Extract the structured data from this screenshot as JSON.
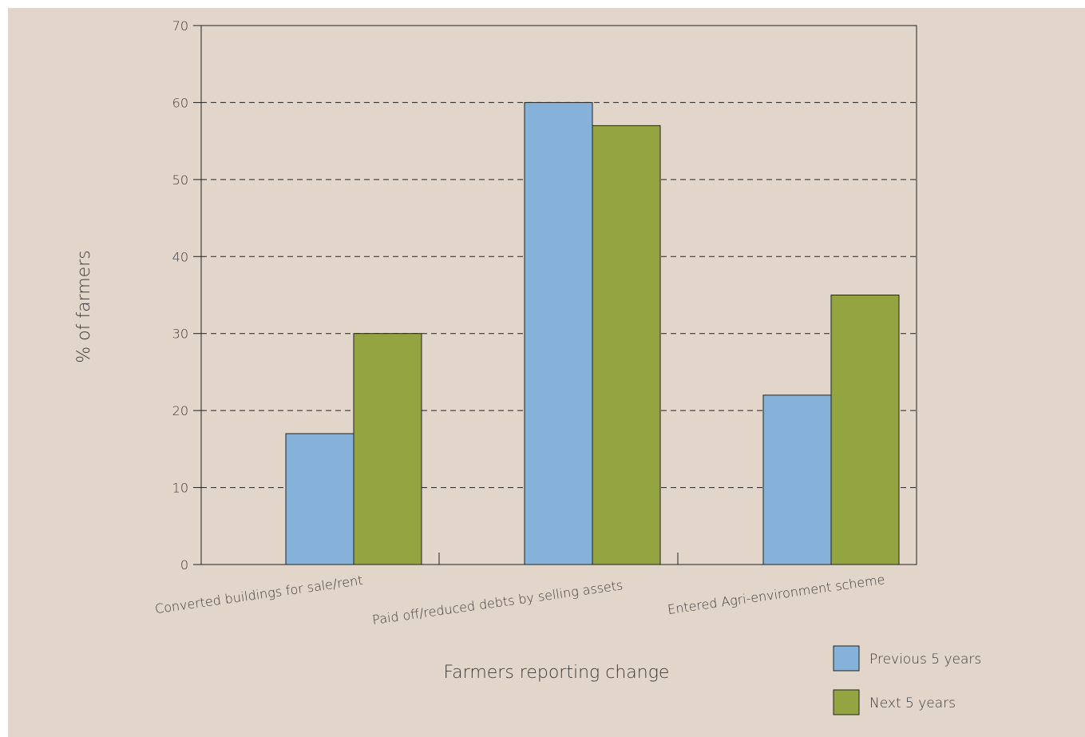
{
  "chart_data": {
    "type": "bar",
    "title": "",
    "xlabel": "Farmers reporting change",
    "ylabel": "% of farmers",
    "ylim": [
      0,
      70
    ],
    "yticks": [
      0,
      10,
      20,
      30,
      40,
      50,
      60,
      70
    ],
    "grid": true,
    "legend_position": "bottom-right",
    "categories": [
      "Converted buildings for sale/rent",
      "Paid off/reduced debts by selling assets",
      "Entered Agri-environment scheme"
    ],
    "series": [
      {
        "name": "Previous 5 years",
        "color": "#86b2d9",
        "values": [
          17,
          60,
          22
        ]
      },
      {
        "name": "Next 5 years",
        "color": "#93a441",
        "values": [
          30,
          57,
          35
        ]
      }
    ]
  }
}
